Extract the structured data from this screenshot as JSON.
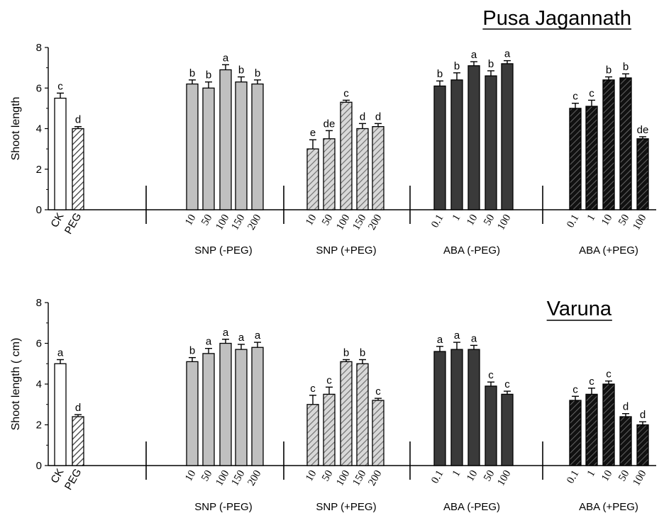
{
  "colors": {
    "ck_fill": "#ffffff",
    "peg_hatch": "#333333",
    "snp_minus_fill": "#c0c0c0",
    "snp_plus_hatch": "#888888",
    "aba_minus_fill": "#3a3a3a",
    "aba_plus_fill": "#222222",
    "axis": "#000000"
  },
  "chart_data": [
    {
      "type": "bar",
      "title": "Pusa Jagannath",
      "ylabel": "Shoot length",
      "ylim": [
        0,
        8
      ],
      "yticks": [
        "0",
        "2",
        "4",
        "6",
        "8"
      ],
      "groups": [
        {
          "name": "",
          "style": "control",
          "categories": [
            "CK",
            "PEG"
          ],
          "values": [
            5.5,
            4.0
          ],
          "errors": [
            0.25,
            0.1
          ],
          "letters": [
            "c",
            "d"
          ]
        },
        {
          "name": "SNP (-PEG)",
          "style": "snp_minus",
          "categories": [
            "10",
            "50",
            "100",
            "150",
            "200"
          ],
          "values": [
            6.2,
            6.0,
            6.9,
            6.3,
            6.2
          ],
          "errors": [
            0.2,
            0.3,
            0.25,
            0.25,
            0.2
          ],
          "letters": [
            "b",
            "b",
            "a",
            "b",
            "b"
          ]
        },
        {
          "name": "SNP (+PEG)",
          "style": "snp_plus",
          "categories": [
            "10",
            "50",
            "100",
            "150",
            "200"
          ],
          "values": [
            3.0,
            3.5,
            5.3,
            4.0,
            4.1
          ],
          "errors": [
            0.45,
            0.4,
            0.1,
            0.25,
            0.15
          ],
          "letters": [
            "e",
            "de",
            "c",
            "d",
            "d"
          ]
        },
        {
          "name": "ABA (-PEG)",
          "style": "aba_minus",
          "categories": [
            "0.1",
            "1",
            "10",
            "50",
            "100"
          ],
          "values": [
            6.1,
            6.4,
            7.1,
            6.6,
            7.2
          ],
          "errors": [
            0.25,
            0.35,
            0.2,
            0.25,
            0.15
          ],
          "letters": [
            "b",
            "b",
            "a",
            "b",
            "a"
          ]
        },
        {
          "name": "ABA (+PEG)",
          "style": "aba_plus",
          "categories": [
            "0.1",
            "1",
            "10",
            "50",
            "100"
          ],
          "values": [
            5.0,
            5.1,
            6.4,
            6.5,
            3.5
          ],
          "errors": [
            0.25,
            0.3,
            0.15,
            0.2,
            0.1
          ],
          "letters": [
            "c",
            "c",
            "b",
            "b",
            "de"
          ]
        }
      ]
    },
    {
      "type": "bar",
      "title": "Varuna",
      "ylabel": "Shoot length  ( cm)",
      "ylim": [
        0,
        8
      ],
      "yticks": [
        "0",
        "2",
        "4",
        "6",
        "8"
      ],
      "groups": [
        {
          "name": "",
          "style": "control",
          "categories": [
            "CK",
            "PEG"
          ],
          "values": [
            5.0,
            2.4
          ],
          "errors": [
            0.2,
            0.1
          ],
          "letters": [
            "a",
            "d"
          ]
        },
        {
          "name": "SNP (-PEG)",
          "style": "snp_minus",
          "categories": [
            "10",
            "50",
            "100",
            "150",
            "200"
          ],
          "values": [
            5.1,
            5.5,
            6.0,
            5.7,
            5.8
          ],
          "errors": [
            0.2,
            0.25,
            0.2,
            0.25,
            0.25
          ],
          "letters": [
            "b",
            "a",
            "a",
            "a",
            "a"
          ]
        },
        {
          "name": "SNP (+PEG)",
          "style": "snp_plus",
          "categories": [
            "10",
            "50",
            "100",
            "150",
            "200"
          ],
          "values": [
            3.0,
            3.5,
            5.1,
            5.0,
            3.2
          ],
          "errors": [
            0.45,
            0.35,
            0.1,
            0.2,
            0.1
          ],
          "letters": [
            "c",
            "c",
            "b",
            "b",
            "c"
          ]
        },
        {
          "name": "ABA (-PEG)",
          "style": "aba_minus",
          "categories": [
            "0.1",
            "1",
            "10",
            "50",
            "100"
          ],
          "values": [
            5.6,
            5.7,
            5.7,
            3.9,
            3.5
          ],
          "errors": [
            0.25,
            0.35,
            0.2,
            0.2,
            0.15
          ],
          "letters": [
            "a",
            "a",
            "a",
            "c",
            "c"
          ]
        },
        {
          "name": "ABA (+PEG)",
          "style": "aba_plus",
          "categories": [
            "0.1",
            "1",
            "10",
            "50",
            "100"
          ],
          "values": [
            3.2,
            3.5,
            4.0,
            2.4,
            2.0
          ],
          "errors": [
            0.2,
            0.3,
            0.15,
            0.15,
            0.15
          ],
          "letters": [
            "c",
            "c",
            "c",
            "d",
            "d"
          ]
        }
      ]
    }
  ]
}
